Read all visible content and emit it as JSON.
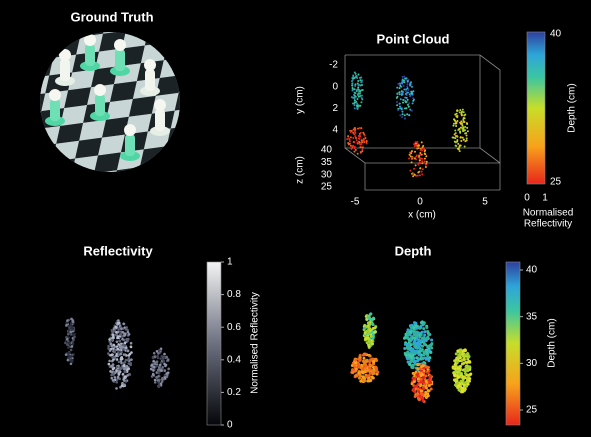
{
  "panels": {
    "ground_truth": {
      "title": "Ground Truth"
    },
    "point_cloud": {
      "title": "Point Cloud",
      "y_label": "y (cm)",
      "y_ticks": [
        -2,
        0,
        2,
        4
      ],
      "z_label": "z (cm)",
      "z_ticks": [
        40,
        35,
        30,
        25
      ],
      "x_label": "x (cm)",
      "x_ticks": [
        -5,
        0,
        5
      ],
      "depth_bar": {
        "label": "Depth (cm)",
        "ticks": [
          40,
          25
        ]
      },
      "reflectivity_bar": {
        "label": [
          "Normalised",
          "Reflectivity"
        ],
        "ticks": [
          0,
          1
        ]
      }
    },
    "reflectivity": {
      "title": "Reflectivity",
      "colorbar": {
        "label": "Normalised Reflectivity",
        "ticks": [
          0,
          0.2,
          0.4,
          0.6,
          0.8,
          1
        ]
      }
    },
    "depth": {
      "title": "Depth",
      "colorbar": {
        "label": "Depth (cm)",
        "ticks": [
          25,
          30,
          35,
          40
        ]
      }
    }
  }
}
